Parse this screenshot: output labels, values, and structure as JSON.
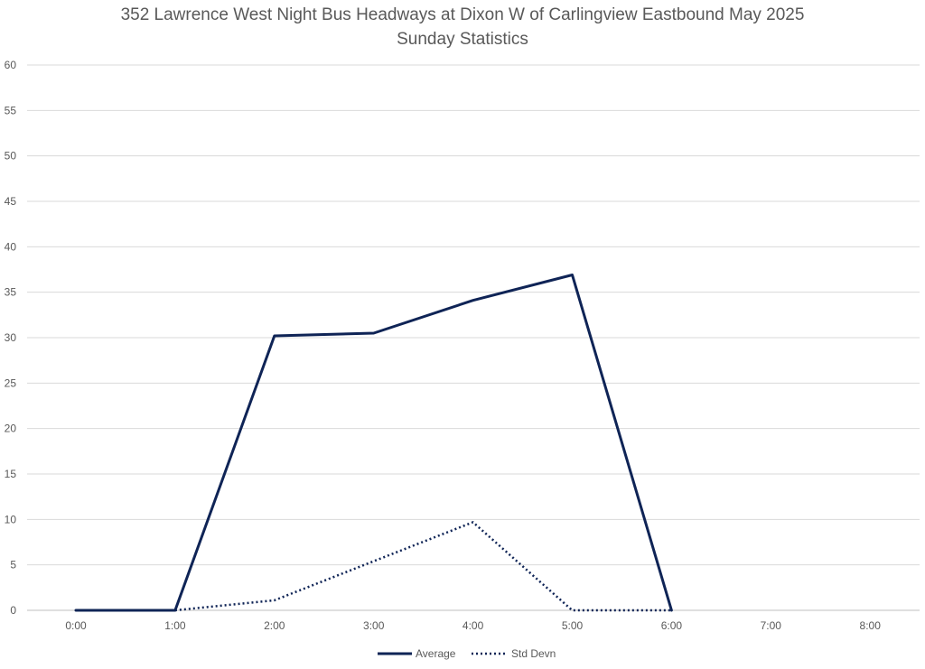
{
  "chart_data": {
    "type": "line",
    "title": "352 Lawrence West Night Bus Headways at Dixon W of Carlingview Eastbound May 2025",
    "subtitle": "Sunday Statistics",
    "xlabel": "",
    "ylabel": "",
    "categories": [
      "0:00",
      "1:00",
      "2:00",
      "3:00",
      "4:00",
      "5:00",
      "6:00",
      "7:00",
      "8:00"
    ],
    "ylim": [
      0,
      60
    ],
    "yticks": [
      0,
      5,
      10,
      15,
      20,
      25,
      30,
      35,
      40,
      45,
      50,
      55,
      60
    ],
    "grid": true,
    "legend_position": "bottom",
    "series": [
      {
        "name": "Average",
        "color": "#0f2456",
        "style": "solid",
        "values": [
          0,
          0,
          30.2,
          30.5,
          34.1,
          36.9,
          0,
          null,
          0
        ]
      },
      {
        "name": "Std Devn",
        "color": "#0f2456",
        "style": "dotted",
        "values": [
          null,
          0,
          1.1,
          5.4,
          9.7,
          0,
          0,
          null,
          null
        ]
      }
    ]
  }
}
